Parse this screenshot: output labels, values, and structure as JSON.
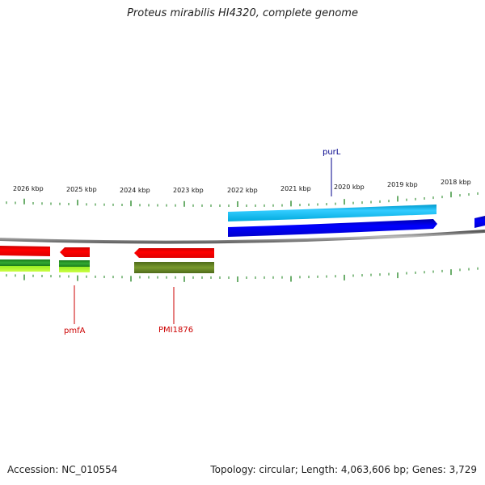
{
  "title": "Proteus mirabilis HI4320, complete genome",
  "footer": {
    "accession": "Accession: NC_010554",
    "summary": "Topology: circular; Length: 4,063,606 bp; Genes: 3,729"
  },
  "kbp_labels": [
    "2026 kbp",
    "2025 kbp",
    "2024 kbp",
    "2023 kbp",
    "2022 kbp",
    "2021 kbp",
    "2020 kbp",
    "2019 kbp",
    "2018 kbp"
  ],
  "genes": {
    "purL": {
      "label": "purL",
      "color": "#00008b"
    },
    "pmfA": {
      "label": "pmfA",
      "color": "#cc0000"
    },
    "PMI1876": {
      "label": "PMI1876",
      "color": "#cc0000"
    }
  },
  "colors": {
    "backbone": "#808080",
    "ticks": "#2e8b2e",
    "forward_cds": "#0000ee",
    "forward_cds_light": "#00bfff",
    "reverse_cds": "#ff0000",
    "rna_green": "#228b22",
    "rna_lime": "#adff2f",
    "olive": "#6b8e23"
  }
}
